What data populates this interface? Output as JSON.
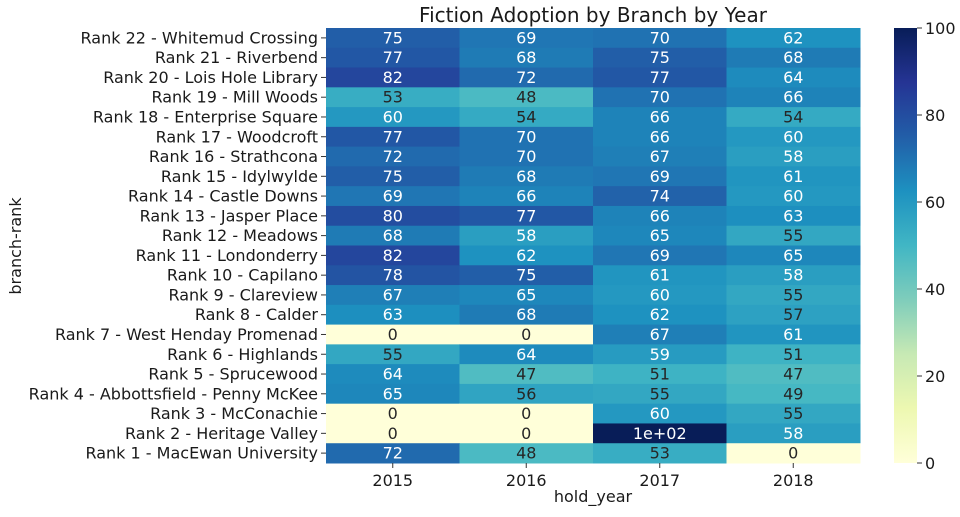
{
  "chart_data": {
    "type": "heatmap",
    "title": "Fiction Adoption by Branch by Year",
    "xlabel": "hold_year",
    "ylabel": "branch-rank",
    "x": [
      "2015",
      "2016",
      "2017",
      "2018"
    ],
    "rows": [
      {
        "label": "Rank 22 - Whitemud Crossing",
        "values": [
          75,
          69,
          70,
          62
        ],
        "cell_labels": [
          "75",
          "69",
          "70",
          "62"
        ]
      },
      {
        "label": "Rank 21 - Riverbend",
        "values": [
          77,
          68,
          75,
          68
        ],
        "cell_labels": [
          "77",
          "68",
          "75",
          "68"
        ]
      },
      {
        "label": "Rank 20 - Lois Hole Library",
        "values": [
          82,
          72,
          77,
          64
        ],
        "cell_labels": [
          "82",
          "72",
          "77",
          "64"
        ]
      },
      {
        "label": "Rank 19 - Mill Woods",
        "values": [
          53,
          48,
          70,
          66
        ],
        "cell_labels": [
          "53",
          "48",
          "70",
          "66"
        ]
      },
      {
        "label": "Rank 18 - Enterprise Square",
        "values": [
          60,
          54,
          66,
          54
        ],
        "cell_labels": [
          "60",
          "54",
          "66",
          "54"
        ]
      },
      {
        "label": "Rank 17 - Woodcroft",
        "values": [
          77,
          70,
          66,
          60
        ],
        "cell_labels": [
          "77",
          "70",
          "66",
          "60"
        ]
      },
      {
        "label": "Rank 16 - Strathcona",
        "values": [
          72,
          70,
          67,
          58
        ],
        "cell_labels": [
          "72",
          "70",
          "67",
          "58"
        ]
      },
      {
        "label": "Rank 15 - Idylwylde",
        "values": [
          75,
          68,
          69,
          61
        ],
        "cell_labels": [
          "75",
          "68",
          "69",
          "61"
        ]
      },
      {
        "label": "Rank 14 - Castle Downs",
        "values": [
          69,
          66,
          74,
          60
        ],
        "cell_labels": [
          "69",
          "66",
          "74",
          "60"
        ]
      },
      {
        "label": "Rank 13 - Jasper Place",
        "values": [
          80,
          77,
          66,
          63
        ],
        "cell_labels": [
          "80",
          "77",
          "66",
          "63"
        ]
      },
      {
        "label": "Rank 12 - Meadows",
        "values": [
          68,
          58,
          65,
          55
        ],
        "cell_labels": [
          "68",
          "58",
          "65",
          "55"
        ]
      },
      {
        "label": "Rank 11 - Londonderry",
        "values": [
          82,
          62,
          69,
          65
        ],
        "cell_labels": [
          "82",
          "62",
          "69",
          "65"
        ]
      },
      {
        "label": "Rank 10 - Capilano",
        "values": [
          78,
          75,
          61,
          58
        ],
        "cell_labels": [
          "78",
          "75",
          "61",
          "58"
        ]
      },
      {
        "label": "Rank 9 - Clareview",
        "values": [
          67,
          65,
          60,
          55
        ],
        "cell_labels": [
          "67",
          "65",
          "60",
          "55"
        ]
      },
      {
        "label": "Rank 8 - Calder",
        "values": [
          63,
          68,
          62,
          57
        ],
        "cell_labels": [
          "63",
          "68",
          "62",
          "57"
        ]
      },
      {
        "label": "Rank 7 - West Henday Promenad",
        "values": [
          0,
          0,
          67,
          61
        ],
        "cell_labels": [
          "0",
          "0",
          "67",
          "61"
        ]
      },
      {
        "label": "Rank 6 - Highlands",
        "values": [
          55,
          64,
          59,
          51
        ],
        "cell_labels": [
          "55",
          "64",
          "59",
          "51"
        ]
      },
      {
        "label": "Rank 5 - Sprucewood",
        "values": [
          64,
          47,
          51,
          47
        ],
        "cell_labels": [
          "64",
          "47",
          "51",
          "47"
        ]
      },
      {
        "label": "Rank 4 - Abbottsfield - Penny McKee",
        "values": [
          65,
          56,
          55,
          49
        ],
        "cell_labels": [
          "65",
          "56",
          "55",
          "49"
        ]
      },
      {
        "label": "Rank 3 - McConachie",
        "values": [
          0,
          0,
          60,
          55
        ],
        "cell_labels": [
          "0",
          "0",
          "60",
          "55"
        ]
      },
      {
        "label": "Rank 2 - Heritage Valley",
        "values": [
          0,
          0,
          100,
          58
        ],
        "cell_labels": [
          "0",
          "0",
          "1e+02",
          "58"
        ]
      },
      {
        "label": "Rank 1 - MacEwan University",
        "values": [
          72,
          48,
          53,
          0
        ],
        "cell_labels": [
          "72",
          "48",
          "53",
          "0"
        ]
      }
    ],
    "colorbar": {
      "range": [
        0,
        100
      ],
      "ticks": [
        "0",
        "20",
        "40",
        "60",
        "80",
        "100"
      ],
      "colormap": "YlGnBu",
      "stops": [
        "#ffffd9",
        "#edf8b1",
        "#c7e9b4",
        "#7fcdbb",
        "#41b6c4",
        "#1d91c0",
        "#225ea8",
        "#253494",
        "#081d58"
      ]
    },
    "grid": false,
    "legend": "colorbar-right"
  }
}
